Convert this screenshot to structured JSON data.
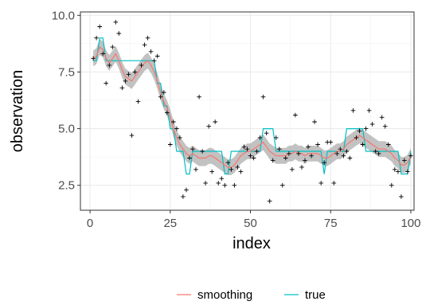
{
  "chart_data": {
    "type": "line",
    "xlabel": "index",
    "ylabel": "observation",
    "xlim": [
      -3,
      101
    ],
    "ylim": [
      1.4,
      10.15
    ],
    "x_ticks": [
      0,
      25,
      50,
      75,
      100
    ],
    "x_tick_labels": [
      "0",
      "25",
      "50",
      "75",
      "100"
    ],
    "y_ticks": [
      2.5,
      5.0,
      7.5,
      10.0
    ],
    "y_tick_labels": [
      "2.5",
      "5.0",
      "7.5",
      "10.0"
    ],
    "grid": true,
    "legend_position": "bottom",
    "legend": [
      {
        "label": "smoothing",
        "color": "#f8766d"
      },
      {
        "label": "true",
        "color": "#00bfc4"
      }
    ],
    "band_color": "#999999",
    "point_color": "#000000",
    "observations": [
      [
        1,
        8.1
      ],
      [
        2,
        9.0
      ],
      [
        3,
        9.5
      ],
      [
        4,
        8.3
      ],
      [
        5,
        7.0
      ],
      [
        6,
        7.8
      ],
      [
        7,
        8.6
      ],
      [
        8,
        9.7
      ],
      [
        9,
        9.2
      ],
      [
        10,
        6.8
      ],
      [
        11,
        7.1
      ],
      [
        12,
        7.4
      ],
      [
        13,
        4.7
      ],
      [
        14,
        7.5
      ],
      [
        15,
        6.2
      ],
      [
        16,
        7.8
      ],
      [
        17,
        8.7
      ],
      [
        18,
        9.0
      ],
      [
        19,
        8.4
      ],
      [
        20,
        8.0
      ],
      [
        21,
        8.2
      ],
      [
        22,
        6.4
      ],
      [
        23,
        6.6
      ],
      [
        24,
        5.7
      ],
      [
        25,
        4.3
      ],
      [
        26,
        5.3
      ],
      [
        27,
        5.0
      ],
      [
        28,
        4.6
      ],
      [
        29,
        2.0
      ],
      [
        30,
        2.3
      ],
      [
        31,
        3.7
      ],
      [
        32,
        4.1
      ],
      [
        33,
        3.2
      ],
      [
        34,
        6.4
      ],
      [
        35,
        4.0
      ],
      [
        36,
        2.6
      ],
      [
        37,
        5.1
      ],
      [
        38,
        3.1
      ],
      [
        39,
        5.3
      ],
      [
        40,
        2.6
      ],
      [
        41,
        2.8
      ],
      [
        42,
        2.5
      ],
      [
        43,
        3.5
      ],
      [
        44,
        3.2
      ],
      [
        45,
        2.5
      ],
      [
        46,
        3.3
      ],
      [
        47,
        3.1
      ],
      [
        48,
        4.2
      ],
      [
        49,
        4.1
      ],
      [
        50,
        3.8
      ],
      [
        51,
        3.7
      ],
      [
        52,
        4.0
      ],
      [
        53,
        4.6
      ],
      [
        54,
        6.4
      ],
      [
        55,
        4.8
      ],
      [
        56,
        1.8
      ],
      [
        57,
        3.6
      ],
      [
        58,
        4.6
      ],
      [
        59,
        4.1
      ],
      [
        60,
        2.5
      ],
      [
        61,
        3.7
      ],
      [
        62,
        3.9
      ],
      [
        63,
        3.2
      ],
      [
        64,
        5.6
      ],
      [
        65,
        3.9
      ],
      [
        66,
        3.3
      ],
      [
        67,
        3.6
      ],
      [
        68,
        4.2
      ],
      [
        69,
        3.8
      ],
      [
        70,
        5.3
      ],
      [
        71,
        4.3
      ],
      [
        72,
        2.6
      ],
      [
        73,
        3.5
      ],
      [
        74,
        4.4
      ],
      [
        75,
        4.4
      ],
      [
        76,
        2.6
      ],
      [
        77,
        3.9
      ],
      [
        78,
        4.1
      ],
      [
        79,
        3.8
      ],
      [
        80,
        4.0
      ],
      [
        81,
        3.7
      ],
      [
        82,
        5.8
      ],
      [
        83,
        4.6
      ],
      [
        84,
        4.9
      ],
      [
        85,
        4.3
      ],
      [
        86,
        5.0
      ],
      [
        87,
        5.8
      ],
      [
        88,
        5.2
      ],
      [
        89,
        4.0
      ],
      [
        90,
        3.9
      ],
      [
        91,
        5.5
      ],
      [
        92,
        5.1
      ],
      [
        93,
        4.3
      ],
      [
        94,
        2.5
      ],
      [
        95,
        3.2
      ],
      [
        96,
        3.1
      ],
      [
        97,
        2.0
      ],
      [
        98,
        3.6
      ],
      [
        99,
        3.1
      ],
      [
        100,
        3.8
      ]
    ],
    "true_signal": [
      [
        1,
        8
      ],
      [
        2,
        8
      ],
      [
        3,
        9
      ],
      [
        4,
        9
      ],
      [
        5,
        8
      ],
      [
        10,
        8
      ],
      [
        11,
        8
      ],
      [
        20,
        8
      ],
      [
        21,
        7
      ],
      [
        22,
        7
      ],
      [
        23,
        6
      ],
      [
        24,
        6
      ],
      [
        25,
        5
      ],
      [
        26,
        5
      ],
      [
        27,
        4
      ],
      [
        28,
        4
      ],
      [
        29,
        4
      ],
      [
        30,
        3
      ],
      [
        31,
        3
      ],
      [
        32,
        4
      ],
      [
        40,
        4
      ],
      [
        41,
        4
      ],
      [
        42,
        3
      ],
      [
        43,
        3
      ],
      [
        44,
        4
      ],
      [
        53,
        4
      ],
      [
        54,
        5
      ],
      [
        57,
        5
      ],
      [
        58,
        4
      ],
      [
        71,
        4
      ],
      [
        72,
        4
      ],
      [
        73,
        3
      ],
      [
        74,
        4
      ],
      [
        79,
        4
      ],
      [
        80,
        5
      ],
      [
        85,
        5
      ],
      [
        86,
        4
      ],
      [
        96,
        4
      ],
      [
        97,
        3
      ],
      [
        99,
        3
      ],
      [
        100,
        4
      ]
    ],
    "smoothing": [
      [
        1,
        8.1
      ],
      [
        2,
        8.2
      ],
      [
        3,
        8.6
      ],
      [
        4,
        8.5
      ],
      [
        5,
        8.1
      ],
      [
        6,
        7.9
      ],
      [
        7,
        8.1
      ],
      [
        8,
        8.3
      ],
      [
        9,
        8.0
      ],
      [
        10,
        7.6
      ],
      [
        11,
        7.3
      ],
      [
        12,
        7.2
      ],
      [
        13,
        7.1
      ],
      [
        14,
        7.3
      ],
      [
        15,
        7.5
      ],
      [
        16,
        7.7
      ],
      [
        17,
        7.9
      ],
      [
        18,
        8.0
      ],
      [
        19,
        7.8
      ],
      [
        20,
        7.5
      ],
      [
        21,
        7.1
      ],
      [
        22,
        6.6
      ],
      [
        23,
        6.2
      ],
      [
        24,
        5.9
      ],
      [
        25,
        5.5
      ],
      [
        26,
        5.0
      ],
      [
        27,
        4.6
      ],
      [
        28,
        4.3
      ],
      [
        29,
        4.1
      ],
      [
        30,
        3.9
      ],
      [
        31,
        3.8
      ],
      [
        32,
        3.9
      ],
      [
        33,
        3.8
      ],
      [
        34,
        3.7
      ],
      [
        35,
        3.7
      ],
      [
        36,
        3.7
      ],
      [
        37,
        3.8
      ],
      [
        38,
        3.8
      ],
      [
        39,
        3.7
      ],
      [
        40,
        3.6
      ],
      [
        41,
        3.5
      ],
      [
        42,
        3.4
      ],
      [
        43,
        3.3
      ],
      [
        44,
        3.3
      ],
      [
        45,
        3.4
      ],
      [
        46,
        3.6
      ],
      [
        47,
        3.8
      ],
      [
        48,
        3.9
      ],
      [
        49,
        4.0
      ],
      [
        50,
        4.0
      ],
      [
        51,
        4.1
      ],
      [
        52,
        4.2
      ],
      [
        53,
        4.3
      ],
      [
        54,
        4.4
      ],
      [
        55,
        4.2
      ],
      [
        56,
        4.0
      ],
      [
        57,
        3.9
      ],
      [
        58,
        3.8
      ],
      [
        59,
        3.8
      ],
      [
        60,
        3.8
      ],
      [
        61,
        3.8
      ],
      [
        62,
        3.9
      ],
      [
        63,
        3.9
      ],
      [
        64,
        4.0
      ],
      [
        65,
        3.9
      ],
      [
        66,
        3.9
      ],
      [
        67,
        3.8
      ],
      [
        68,
        3.9
      ],
      [
        69,
        3.9
      ],
      [
        70,
        3.9
      ],
      [
        71,
        3.9
      ],
      [
        72,
        3.8
      ],
      [
        73,
        3.7
      ],
      [
        74,
        3.7
      ],
      [
        75,
        3.8
      ],
      [
        76,
        3.9
      ],
      [
        77,
        4.0
      ],
      [
        78,
        4.0
      ],
      [
        79,
        4.1
      ],
      [
        80,
        4.3
      ],
      [
        81,
        4.4
      ],
      [
        82,
        4.5
      ],
      [
        83,
        4.6
      ],
      [
        84,
        4.7
      ],
      [
        85,
        4.6
      ],
      [
        86,
        4.5
      ],
      [
        87,
        4.4
      ],
      [
        88,
        4.3
      ],
      [
        89,
        4.2
      ],
      [
        90,
        4.1
      ],
      [
        91,
        4.1
      ],
      [
        92,
        4.1
      ],
      [
        93,
        4.0
      ],
      [
        94,
        3.9
      ],
      [
        95,
        3.7
      ],
      [
        96,
        3.6
      ],
      [
        97,
        3.4
      ],
      [
        98,
        3.4
      ],
      [
        99,
        3.5
      ],
      [
        100,
        3.8
      ]
    ],
    "band_halfwidth": 0.35
  }
}
